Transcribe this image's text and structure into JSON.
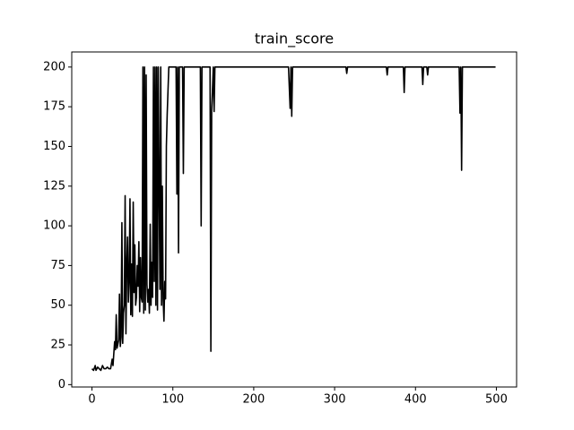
{
  "chart_data": {
    "type": "line",
    "title": "train_score",
    "color": "#000000",
    "x": [
      0,
      2,
      4,
      5,
      7,
      9,
      11,
      13,
      15,
      17,
      19,
      21,
      23,
      25,
      26,
      28,
      29,
      30,
      31,
      33,
      34,
      35,
      36,
      37,
      38,
      39,
      40,
      41,
      42,
      43,
      44,
      45,
      46,
      47,
      48,
      49,
      50,
      51,
      52,
      53,
      54,
      55,
      56,
      57,
      58,
      59,
      60,
      61,
      62,
      63,
      64,
      65,
      66,
      67,
      68,
      69,
      70,
      71,
      72,
      73,
      74,
      75,
      76,
      77,
      78,
      79,
      80,
      81,
      82,
      83,
      84,
      85,
      86,
      87,
      88,
      89,
      90,
      91,
      92,
      93,
      94,
      95,
      96,
      97,
      104,
      105,
      106,
      107,
      108,
      112,
      113,
      114,
      134,
      135,
      136,
      146,
      147,
      148,
      150,
      151,
      152,
      243,
      245,
      246,
      247,
      248,
      314,
      315,
      316,
      364,
      365,
      366,
      385,
      386,
      387,
      408,
      409,
      410,
      414,
      415,
      416,
      454,
      455,
      456,
      457,
      458,
      459,
      460,
      499
    ],
    "values": [
      10,
      9,
      12,
      9,
      11,
      10,
      9,
      12,
      10,
      10,
      11,
      10,
      10,
      16,
      12,
      27,
      22,
      44,
      23,
      28,
      57,
      24,
      30,
      102,
      26,
      45,
      50,
      119,
      32,
      75,
      93,
      52,
      65,
      117,
      44,
      76,
      43,
      115,
      58,
      88,
      50,
      55,
      75,
      62,
      90,
      46,
      80,
      55,
      52,
      200,
      45,
      200,
      47,
      195,
      63,
      52,
      60,
      45,
      101,
      50,
      77,
      55,
      200,
      65,
      200,
      50,
      200,
      47,
      200,
      125,
      60,
      200,
      50,
      125,
      54,
      40,
      65,
      54,
      150,
      170,
      185,
      200,
      200,
      200,
      200,
      120,
      200,
      83,
      200,
      200,
      133,
      200,
      200,
      100,
      200,
      200,
      21,
      172,
      200,
      172,
      200,
      200,
      174,
      200,
      169,
      200,
      200,
      196,
      200,
      200,
      195,
      200,
      200,
      184,
      200,
      200,
      189,
      200,
      200,
      195,
      200,
      200,
      171,
      200,
      135,
      200,
      200,
      200,
      200
    ],
    "xlim": [
      -25,
      525
    ],
    "xticks": [
      0,
      100,
      200,
      300,
      400,
      500
    ],
    "ylim": [
      -1.5,
      209.5
    ],
    "yticks": [
      0,
      25,
      50,
      75,
      100,
      125,
      150,
      175,
      200
    ]
  }
}
